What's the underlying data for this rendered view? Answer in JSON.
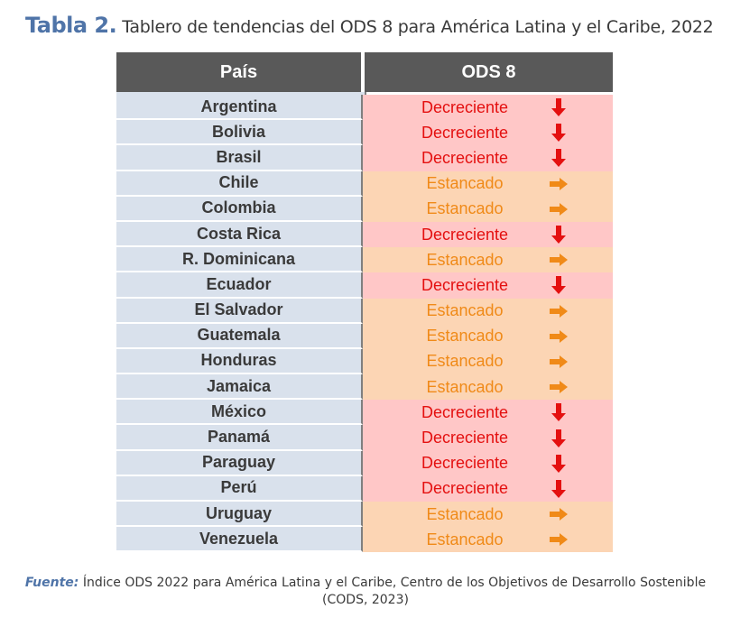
{
  "title": {
    "lead": "Tabla 2.",
    "text": "Tablero de tendencias del ODS 8 para América Latina y el Caribe, 2022"
  },
  "table": {
    "headers": {
      "country": "País",
      "ods": "ODS 8"
    },
    "colors": {
      "decreciente_bg": "#ffc7c7",
      "decreciente_fg": "#e41010",
      "estancado_bg": "#fcd5b4",
      "estancado_fg": "#f08a18",
      "header_bg": "#595959",
      "country_bg": "#d9e1ec"
    },
    "rows": [
      {
        "country": "Argentina",
        "status": "Decreciente",
        "trend": "down"
      },
      {
        "country": "Bolivia",
        "status": "Decreciente",
        "trend": "down"
      },
      {
        "country": "Brasil",
        "status": "Decreciente",
        "trend": "down"
      },
      {
        "country": "Chile",
        "status": "Estancado",
        "trend": "right"
      },
      {
        "country": "Colombia",
        "status": "Estancado",
        "trend": "right"
      },
      {
        "country": "Costa Rica",
        "status": "Decreciente",
        "trend": "down"
      },
      {
        "country": "R. Dominicana",
        "status": "Estancado",
        "trend": "right"
      },
      {
        "country": "Ecuador",
        "status": "Decreciente",
        "trend": "down"
      },
      {
        "country": "El Salvador",
        "status": "Estancado",
        "trend": "right"
      },
      {
        "country": "Guatemala",
        "status": "Estancado",
        "trend": "right"
      },
      {
        "country": "Honduras",
        "status": "Estancado",
        "trend": "right"
      },
      {
        "country": "Jamaica",
        "status": "Estancado",
        "trend": "right"
      },
      {
        "country": "México",
        "status": "Decreciente",
        "trend": "down"
      },
      {
        "country": "Panamá",
        "status": "Decreciente",
        "trend": "down"
      },
      {
        "country": "Paraguay",
        "status": "Decreciente",
        "trend": "down"
      },
      {
        "country": "Perú",
        "status": "Decreciente",
        "trend": "down"
      },
      {
        "country": "Uruguay",
        "status": "Estancado",
        "trend": "right"
      },
      {
        "country": "Venezuela",
        "status": "Estancado",
        "trend": "right"
      }
    ]
  },
  "source": {
    "label": "Fuente:",
    "text": "Índice ODS 2022 para América Latina y el Caribe, Centro de los Objetivos de Desarrollo Sostenible",
    "text2": "(CODS, 2023)"
  }
}
